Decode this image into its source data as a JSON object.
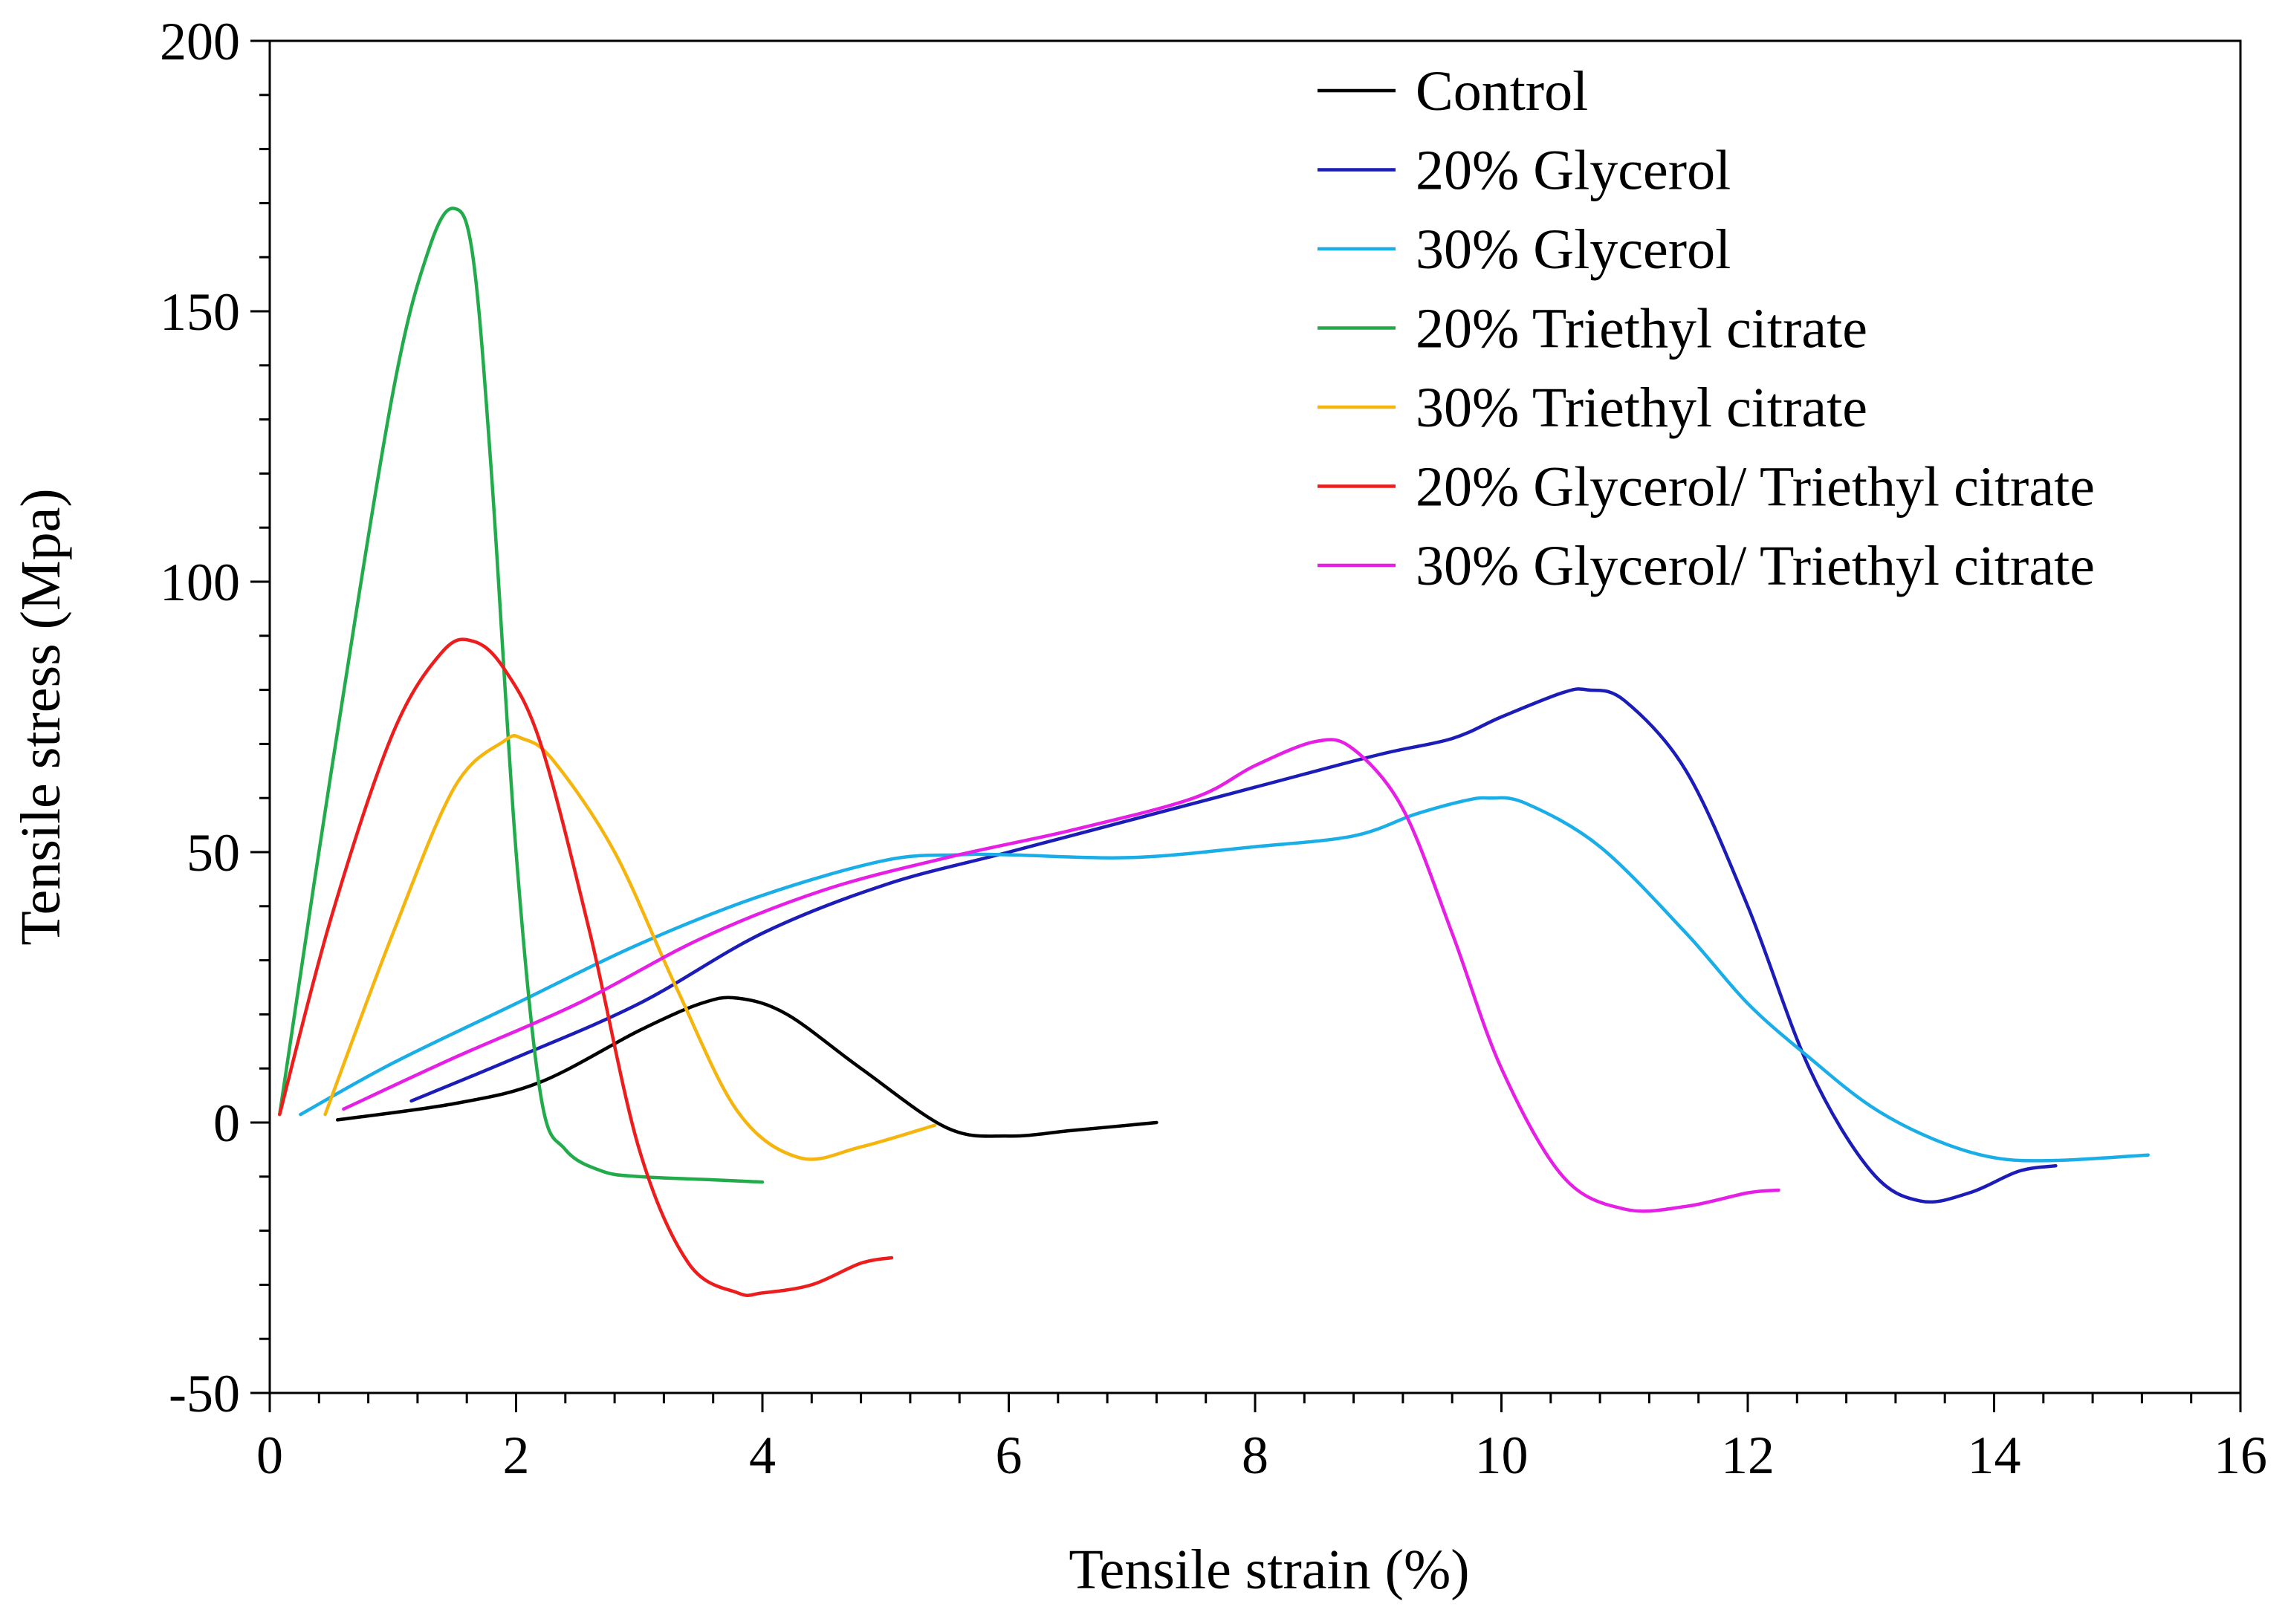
{
  "chart_data": {
    "type": "line",
    "title": "",
    "xlabel": "Tensile strain (%)",
    "ylabel": "Tensile stress (Mpa)",
    "xlim": [
      0,
      16
    ],
    "ylim": [
      -50,
      200
    ],
    "xticks": [
      0,
      2,
      4,
      6,
      8,
      10,
      12,
      14,
      16
    ],
    "yticks": [
      -50,
      0,
      50,
      100,
      150,
      200
    ],
    "xtick_labels": [
      "0",
      "2",
      "4",
      "6",
      "8",
      "10",
      "12",
      "14",
      "16"
    ],
    "ytick_labels": [
      "-50",
      "0",
      "50",
      "100",
      "150",
      "200"
    ],
    "grid": false,
    "legend_position": "top-right",
    "series": [
      {
        "name": "Control",
        "color": "#000000",
        "x": [
          0.55,
          1.5,
          2.2,
          3.0,
          3.5,
          3.8,
          4.2,
          4.8,
          5.5,
          6.0,
          6.5,
          7.2
        ],
        "y": [
          0.5,
          3.5,
          7.5,
          17,
          22,
          23,
          20,
          10,
          -1,
          -2.5,
          -1.5,
          0
        ]
      },
      {
        "name": "20% Glycerol",
        "color": "#1c1cb8",
        "x": [
          1.15,
          2.0,
          3.0,
          4.0,
          5.0,
          6.0,
          7.0,
          8.0,
          9.0,
          9.6,
          10.0,
          10.5,
          10.7,
          11.0,
          11.5,
          12.0,
          12.5,
          13.0,
          13.4,
          13.8,
          14.2,
          14.5
        ],
        "y": [
          4,
          12,
          22,
          35,
          44,
          50,
          56,
          62,
          68,
          71,
          75,
          79.5,
          80,
          78,
          65,
          40,
          10,
          -9,
          -14.5,
          -13,
          -9,
          -8
        ]
      },
      {
        "name": "30% Glycerol",
        "color": "#1aaee8",
        "x": [
          0.25,
          1.0,
          2.0,
          3.0,
          4.0,
          5.0,
          5.6,
          6.0,
          7.0,
          8.0,
          8.8,
          9.3,
          9.7,
          9.9,
          10.2,
          10.8,
          11.5,
          12.0,
          12.5,
          13.0,
          13.5,
          14.0,
          14.5,
          15.25
        ],
        "y": [
          1.5,
          11,
          22,
          33,
          42,
          48.5,
          49.5,
          49.5,
          49,
          51,
          53,
          57,
          59.5,
          60,
          59,
          51,
          35,
          22,
          12,
          3,
          -3,
          -6.5,
          -7,
          -6
        ]
      },
      {
        "name": "20% Triethyl citrate",
        "color": "#21ab4b",
        "x": [
          0.08,
          0.5,
          1.0,
          1.3,
          1.5,
          1.65,
          1.8,
          2.0,
          2.2,
          2.4,
          2.7,
          3.0,
          3.5,
          4.0
        ],
        "y": [
          1.5,
          65,
          135,
          162,
          169,
          160,
          120,
          50,
          5,
          -5,
          -9,
          -10,
          -10.5,
          -11
        ]
      },
      {
        "name": "30% Triethyl citrate",
        "color": "#f5b50c",
        "x": [
          0.45,
          1.0,
          1.5,
          1.9,
          2.05,
          2.3,
          2.8,
          3.3,
          3.8,
          4.3,
          4.8,
          5.4
        ],
        "y": [
          1.5,
          35,
          62,
          70.5,
          71,
          67,
          50,
          25,
          2,
          -6.5,
          -4.5,
          -0.5
        ]
      },
      {
        "name": "20% Glycerol/ Triethyl citrate",
        "color": "#ee1d1d",
        "x": [
          0.08,
          0.5,
          1.0,
          1.4,
          1.65,
          1.9,
          2.2,
          2.6,
          3.0,
          3.4,
          3.8,
          4.0,
          4.4,
          4.8,
          5.05
        ],
        "y": [
          1.5,
          38,
          72,
          87,
          89,
          84,
          70,
          35,
          -5,
          -26,
          -31.5,
          -31.5,
          -30,
          -26,
          -25
        ]
      },
      {
        "name": "30% Glycerol/ Triethyl citrate",
        "color": "#e61ee6",
        "x": [
          0.6,
          1.5,
          2.5,
          3.5,
          4.5,
          5.5,
          6.5,
          7.5,
          8.0,
          8.5,
          8.8,
          9.2,
          9.6,
          10.0,
          10.5,
          11.0,
          11.5,
          12.0,
          12.25
        ],
        "y": [
          2.5,
          12,
          22,
          34,
          43,
          49,
          54,
          60,
          66,
          70.5,
          69,
          58,
          35,
          10,
          -10,
          -16,
          -15.5,
          -13,
          -12.5
        ]
      }
    ]
  }
}
